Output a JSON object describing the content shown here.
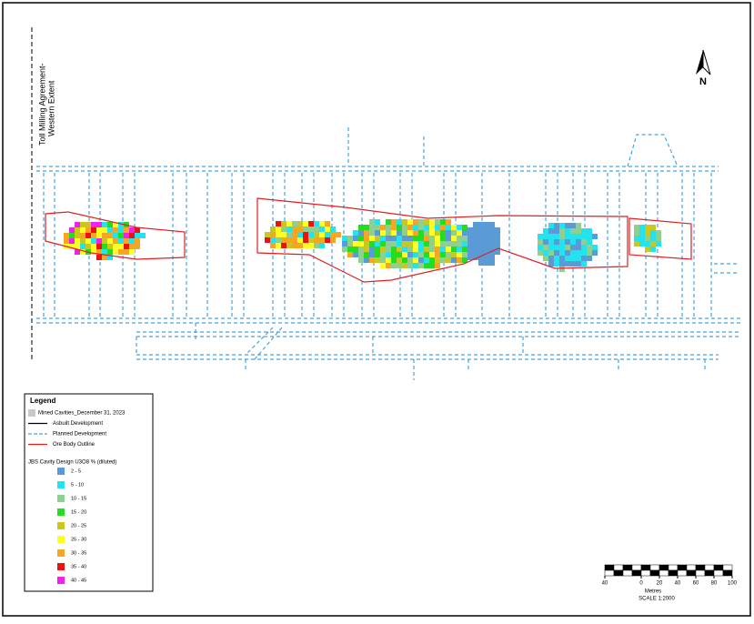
{
  "annotation": {
    "line1": "Toll Milling Agreement-",
    "line2": "Western Extent"
  },
  "north": "N",
  "legend": {
    "title": "Legend",
    "items": [
      {
        "label": "Mined Cavities_December 31, 2023",
        "color": "#c8c8c8"
      },
      {
        "label": "Asbuilt Development",
        "color": "#000000"
      },
      {
        "label": "Planned Development",
        "color": "#4aa3df"
      },
      {
        "label": "Ore Body Outline",
        "color": "#e02020"
      }
    ],
    "grade_title": "JBS Cavity Design U3O8 % (diluted)",
    "classes": [
      {
        "label": "2 - 5",
        "color": "#5b9bd5"
      },
      {
        "label": "5 - 10",
        "color": "#22e3ee"
      },
      {
        "label": "10 - 15",
        "color": "#8fcf8f"
      },
      {
        "label": "15 - 20",
        "color": "#22dd22"
      },
      {
        "label": "20 - 25",
        "color": "#c8c820"
      },
      {
        "label": "25 - 30",
        "color": "#ffff22"
      },
      {
        "label": "30 - 35",
        "color": "#f5a623"
      },
      {
        "label": "35 - 40",
        "color": "#ee1111"
      },
      {
        "label": "40 - 45",
        "color": "#ee22ee"
      }
    ]
  },
  "scale": {
    "ticks": [
      {
        "value": -40,
        "label": "40"
      },
      0,
      20,
      40,
      60,
      80,
      100
    ],
    "units": "Metres",
    "ratio": "SCALE 1:2000"
  }
}
